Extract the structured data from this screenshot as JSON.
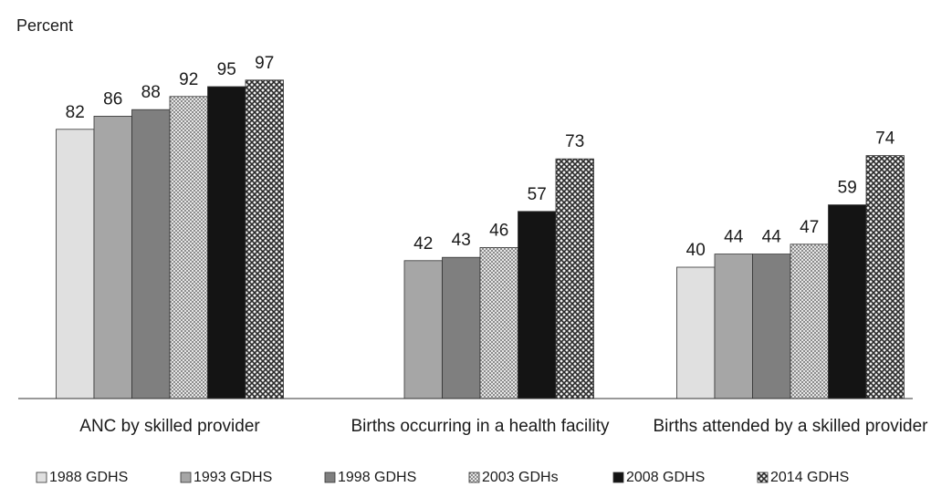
{
  "chart_data": {
    "type": "bar",
    "y_label": "Percent",
    "categories": [
      "ANC by skilled provider",
      "Births occurring in a health facility",
      "Births attended by a skilled provider"
    ],
    "series": [
      {
        "name": "1988 GDHS",
        "color": "#e0e0e0",
        "values": [
          82,
          null,
          40
        ]
      },
      {
        "name": "1993 GDHS",
        "color": "#a6a6a6",
        "values": [
          86,
          42,
          44
        ]
      },
      {
        "name": "1998 GDHS",
        "color": "#7f7f7f",
        "values": [
          88,
          43,
          44
        ]
      },
      {
        "name": "2003 GDHs",
        "color": "#c8c8c8",
        "pattern": "dots",
        "values": [
          92,
          46,
          47
        ]
      },
      {
        "name": "2008 GDHS",
        "color": "#141414",
        "values": [
          95,
          57,
          59
        ]
      },
      {
        "name": "2014 GDHS",
        "color": "#4a4a4a",
        "pattern": "crosshatch",
        "values": [
          97,
          73,
          74
        ]
      }
    ],
    "ylim": [
      0,
      100
    ],
    "grid": false,
    "legend": "bottom"
  }
}
